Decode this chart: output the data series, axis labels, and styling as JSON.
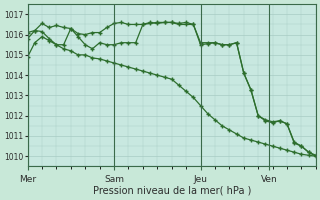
{
  "background_color": "#c8e8d8",
  "plot_bg_color": "#c8e8e0",
  "grid_color": "#a8ccc4",
  "line_color": "#2d6e2d",
  "ylabel": "Pression niveau de la mer( hPa )",
  "ylim": [
    1009.5,
    1017.5
  ],
  "yticks": [
    1010,
    1011,
    1012,
    1013,
    1014,
    1015,
    1016,
    1017
  ],
  "day_labels": [
    "Mer",
    "Sam",
    "Jeu",
    "Ven"
  ],
  "day_positions": [
    0,
    24,
    48,
    67
  ],
  "xlim": [
    0,
    80
  ],
  "series1_x": [
    0,
    2,
    4,
    6,
    8,
    10,
    12,
    14,
    16,
    18,
    20,
    22,
    24,
    26,
    28,
    30,
    32,
    34,
    36,
    38,
    40,
    42,
    44,
    46,
    48,
    50,
    52,
    54,
    56,
    58,
    60,
    62,
    64,
    66,
    68,
    70,
    72,
    74,
    76,
    78,
    80
  ],
  "series1_y": [
    1014.9,
    1015.6,
    1015.9,
    1015.7,
    1015.5,
    1015.3,
    1015.2,
    1015.0,
    1015.0,
    1014.85,
    1014.8,
    1014.7,
    1014.6,
    1014.5,
    1014.4,
    1014.3,
    1014.2,
    1014.1,
    1014.0,
    1013.9,
    1013.8,
    1013.5,
    1013.2,
    1012.9,
    1012.5,
    1012.1,
    1011.8,
    1011.5,
    1011.3,
    1011.1,
    1010.9,
    1010.8,
    1010.7,
    1010.6,
    1010.5,
    1010.4,
    1010.3,
    1010.2,
    1010.1,
    1010.05,
    1010.0
  ],
  "series2_x": [
    0,
    2,
    4,
    6,
    8,
    10,
    12,
    14,
    16,
    18,
    20,
    22,
    24,
    26,
    28,
    30,
    32,
    34,
    36,
    38,
    40,
    42,
    44,
    46,
    48,
    50,
    52,
    54,
    56,
    58,
    60,
    62,
    64,
    66,
    68,
    70,
    72,
    74,
    76,
    78,
    80
  ],
  "series2_y": [
    1015.8,
    1016.2,
    1016.15,
    1015.8,
    1015.5,
    1015.5,
    1016.3,
    1015.9,
    1015.5,
    1015.3,
    1015.6,
    1015.5,
    1015.5,
    1015.6,
    1015.6,
    1015.6,
    1016.5,
    1016.6,
    1016.55,
    1016.6,
    1016.6,
    1016.55,
    1016.6,
    1016.5,
    1015.6,
    1015.6,
    1015.6,
    1015.5,
    1015.5,
    1015.6,
    1014.1,
    1013.25,
    1012.0,
    1011.8,
    1011.7,
    1011.75,
    1011.6,
    1010.7,
    1010.5,
    1010.2,
    1010.0
  ],
  "series3_x": [
    0,
    2,
    4,
    6,
    8,
    10,
    12,
    14,
    16,
    18,
    20,
    22,
    24,
    26,
    28,
    30,
    32,
    34,
    36,
    38,
    40,
    42,
    44,
    46,
    48,
    50,
    52,
    54,
    56,
    58,
    60,
    62,
    64,
    66,
    68,
    70,
    72,
    74,
    76,
    78,
    80
  ],
  "series3_y": [
    1016.1,
    1016.2,
    1016.55,
    1016.35,
    1016.45,
    1016.35,
    1016.3,
    1016.05,
    1016.0,
    1016.1,
    1016.1,
    1016.35,
    1016.55,
    1016.6,
    1016.5,
    1016.5,
    1016.5,
    1016.55,
    1016.6,
    1016.6,
    1016.6,
    1016.5,
    1016.5,
    1016.5,
    1015.5,
    1015.55,
    1015.6,
    1015.5,
    1015.5,
    1015.6,
    1014.1,
    1013.28,
    1012.0,
    1011.75,
    1011.65,
    1011.75,
    1011.6,
    1010.65,
    1010.5,
    1010.2,
    1010.05
  ],
  "vline_positions": [
    0,
    24,
    48,
    67
  ]
}
